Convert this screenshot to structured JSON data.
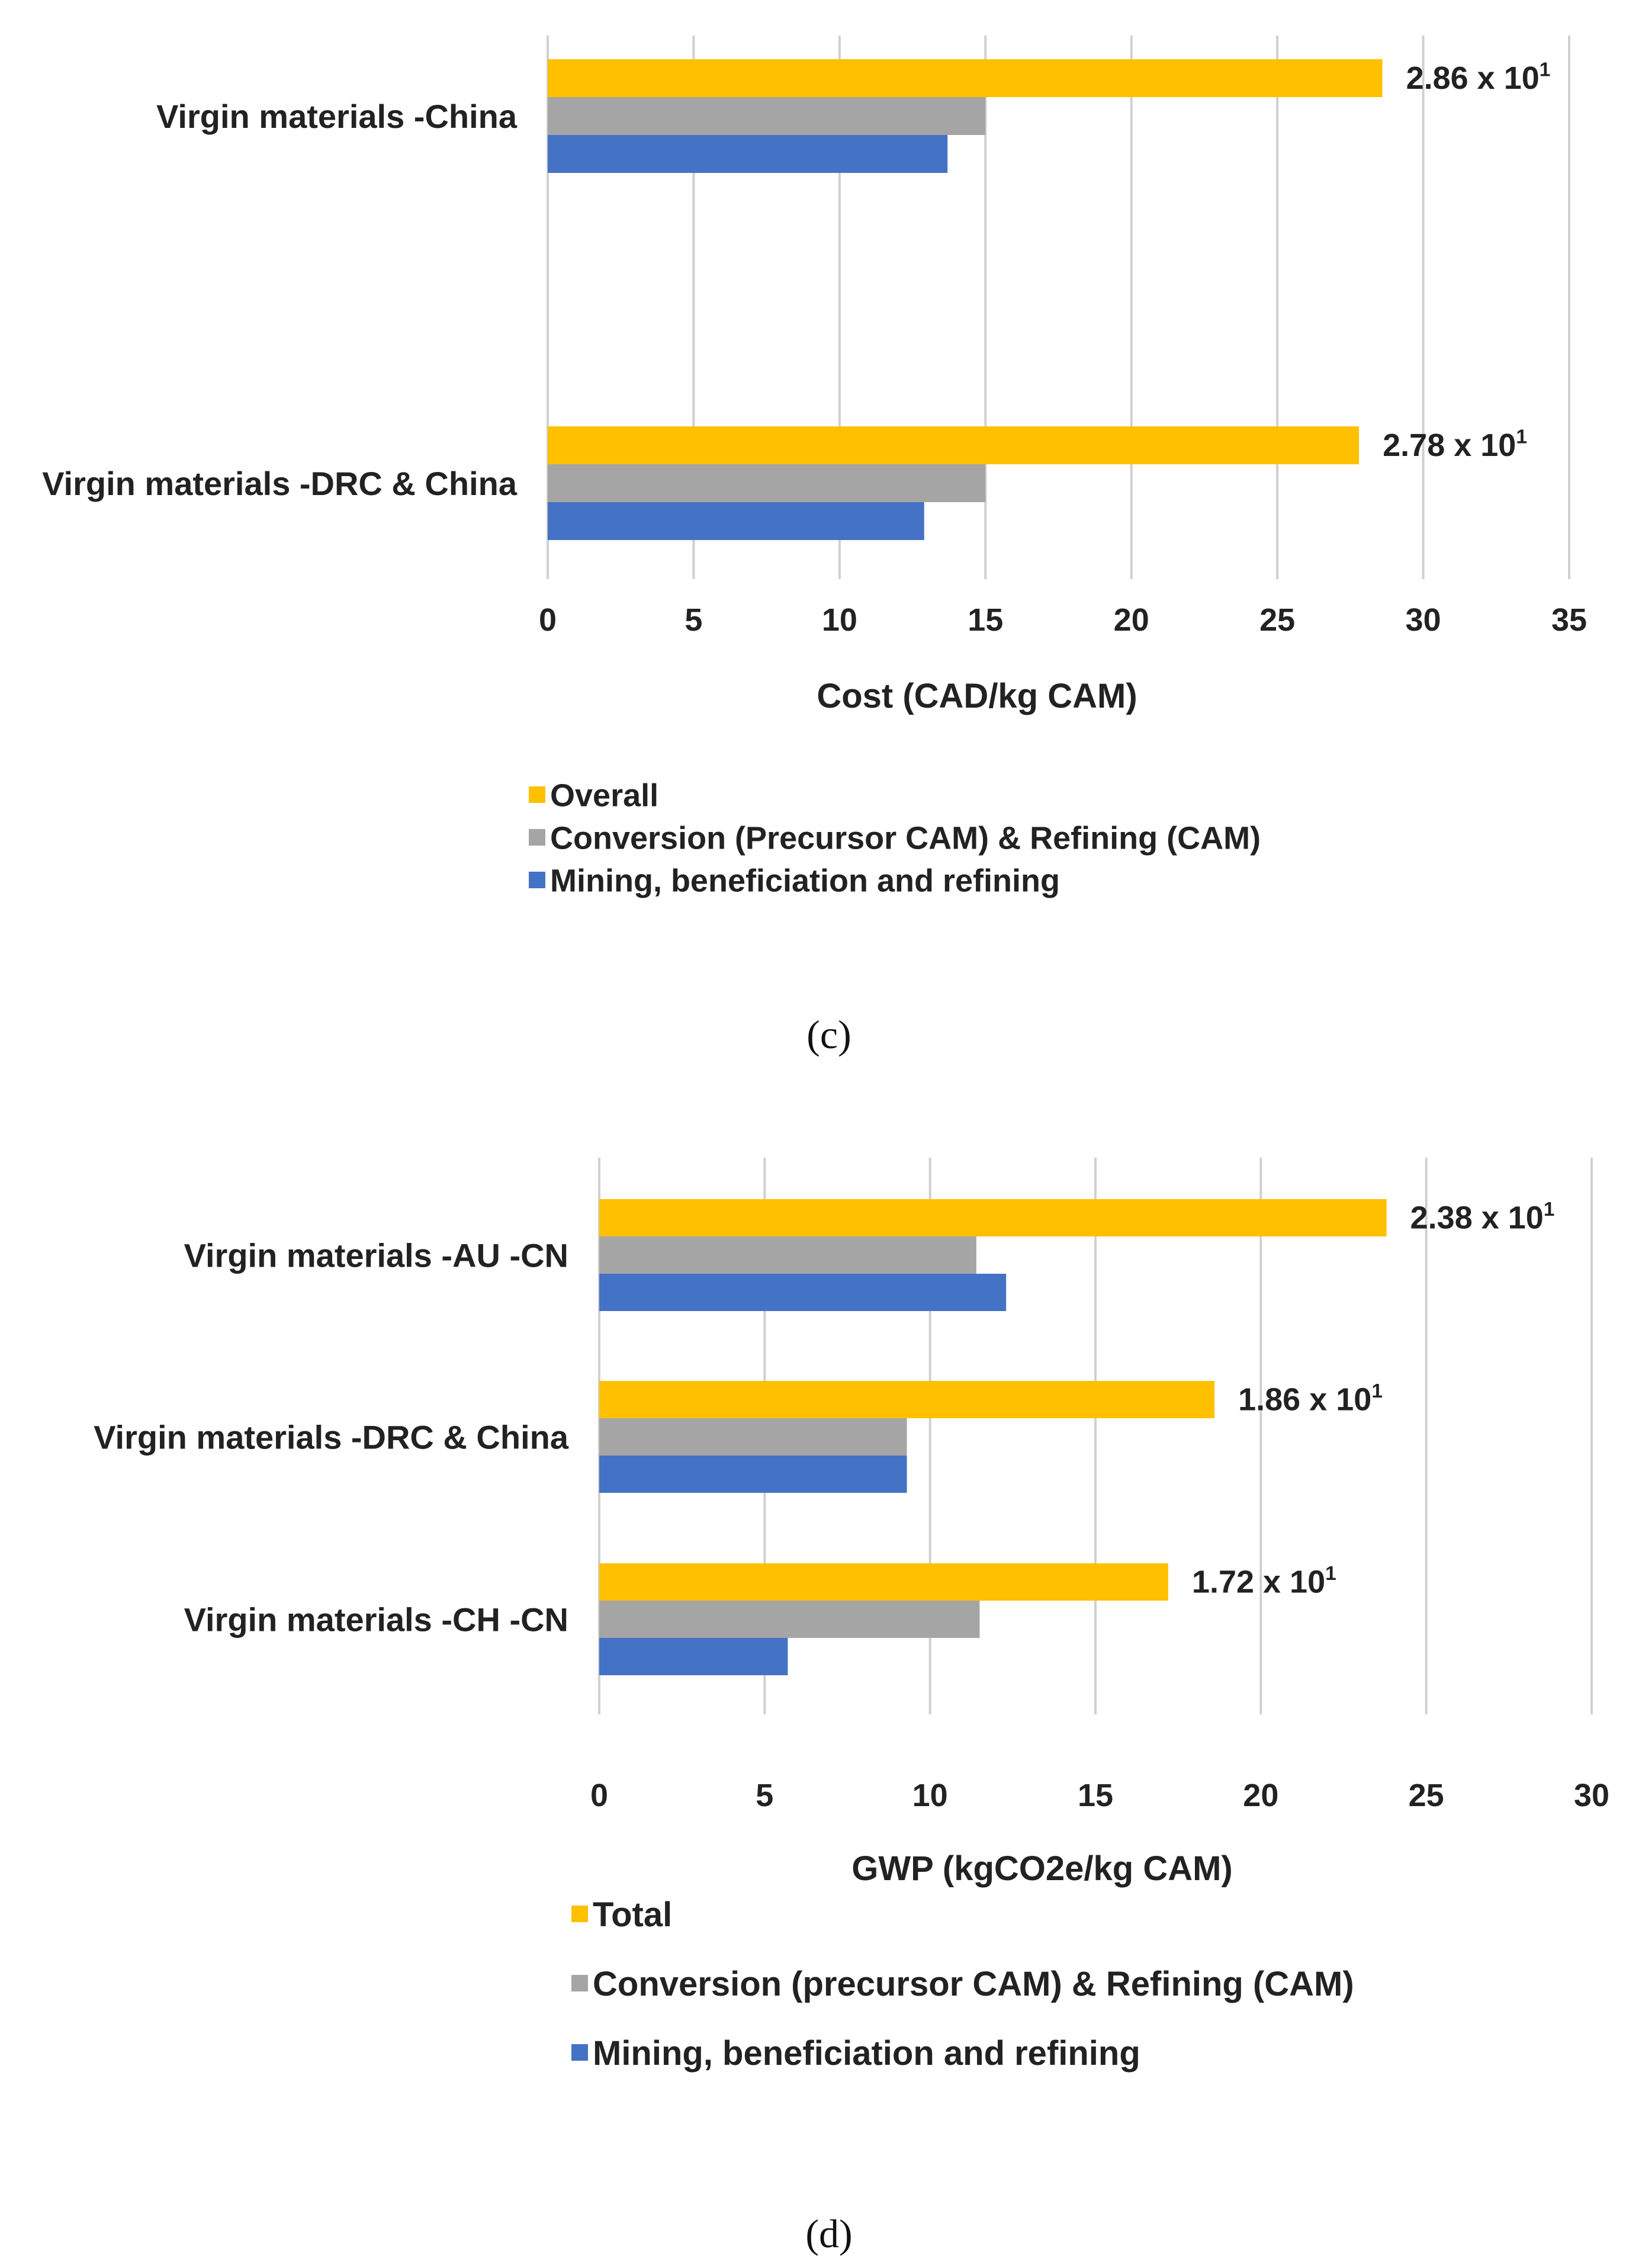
{
  "colors": {
    "total": "#FFC000",
    "conversion": "#A5A5A5",
    "mining": "#4472C4",
    "grid": "#D0D0D0",
    "text": "#222222"
  },
  "chart_data": [
    {
      "type": "bar",
      "orientation": "horizontal",
      "panel_label": "(c)",
      "categories": [
        "Virgin materials -China",
        "Virgin materials -DRC & China"
      ],
      "series": [
        {
          "name": "Overall",
          "color": "#FFC000",
          "values": [
            28.6,
            27.8
          ]
        },
        {
          "name": "Conversion (Precursor CAM) & Refining (CAM)",
          "color": "#A5A5A5",
          "values": [
            15.0,
            15.0
          ]
        },
        {
          "name": "Mining, beneficiation and refining",
          "color": "#4472C4",
          "values": [
            13.7,
            12.9
          ]
        }
      ],
      "data_labels": [
        {
          "category": "Virgin materials -China",
          "mantissa": "2.86 x 10",
          "exponent": "1"
        },
        {
          "category": "Virgin materials -DRC & China",
          "mantissa": "2.78 x 10",
          "exponent": "1"
        }
      ],
      "xlabel": "Cost (CAD/kg CAM)",
      "xlim": [
        0,
        35
      ],
      "xticks": [
        0,
        5,
        10,
        15,
        20,
        25,
        30,
        35
      ],
      "grid": true,
      "legend_position": "bottom"
    },
    {
      "type": "bar",
      "orientation": "horizontal",
      "panel_label": "(d)",
      "categories": [
        "Virgin materials -AU -CN",
        "Virgin materials -DRC & China",
        "Virgin materials -CH -CN"
      ],
      "series": [
        {
          "name": "Total",
          "color": "#FFC000",
          "values": [
            23.8,
            18.6,
            17.2
          ]
        },
        {
          "name": "Conversion (precursor CAM) & Refining (CAM)",
          "color": "#A5A5A5",
          "values": [
            11.4,
            9.3,
            11.5
          ]
        },
        {
          "name": "Mining, beneficiation and refining",
          "color": "#4472C4",
          "values": [
            12.3,
            9.3,
            5.7
          ]
        }
      ],
      "data_labels": [
        {
          "category": "Virgin materials -AU -CN",
          "mantissa": "2.38 x 10",
          "exponent": "1"
        },
        {
          "category": "Virgin materials -DRC & China",
          "mantissa": "1.86 x 10",
          "exponent": "1"
        },
        {
          "category": "Virgin materials -CH -CN",
          "mantissa": "1.72 x 10",
          "exponent": "1"
        }
      ],
      "xlabel": "GWP (kgCO2e/kg CAM)",
      "xlim": [
        0,
        30
      ],
      "xticks": [
        0,
        5,
        10,
        15,
        20,
        25,
        30
      ],
      "grid": true,
      "legend_position": "bottom"
    }
  ]
}
